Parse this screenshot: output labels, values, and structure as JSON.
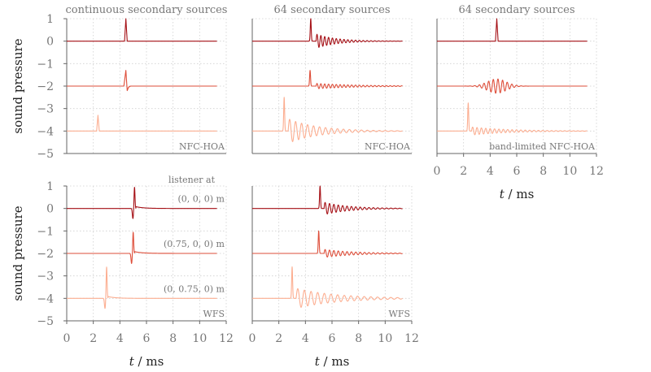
{
  "chart_data": [
    {
      "type": "line",
      "panel": "continuous secondary sources, NFC-HOA",
      "title": "continuous secondary sources",
      "corner_label": "NFC-HOA",
      "ylabel": "sound pressure",
      "xlim": [
        0,
        11.3
      ],
      "ylim": [
        -5,
        1
      ],
      "xticks": [],
      "yticks": [
        1,
        0,
        -1,
        -2,
        -3,
        -4,
        -5
      ],
      "grid": true,
      "series": [
        {
          "offset": 0,
          "color": "#a50f15",
          "x": [
            0,
            4.35,
            4.45,
            4.55,
            11.3
          ],
          "y": [
            0,
            0,
            1.0,
            0,
            0
          ]
        },
        {
          "offset": -2,
          "color": "#de4e3a",
          "x": [
            0,
            4.3,
            4.45,
            4.55,
            4.65,
            4.8,
            11.3
          ],
          "y": [
            -2,
            -2,
            -1.3,
            -2.2,
            -2.05,
            -2,
            -2
          ]
        },
        {
          "offset": -4,
          "color": "#fcae91",
          "x": [
            0,
            2.25,
            2.35,
            2.45,
            11.3
          ],
          "y": [
            -4,
            -4,
            -3.3,
            -4,
            -4
          ]
        }
      ]
    },
    {
      "type": "line",
      "panel": "64 secondary sources, NFC-HOA (full band)",
      "title": "64 secondary sources",
      "corner_label": "NFC-HOA",
      "xlim": [
        0,
        11.3
      ],
      "ylim": [
        -5,
        1
      ],
      "grid": true,
      "series": [
        {
          "offset": 0,
          "color": "#a50f15",
          "note": "impulse at 4.4 ms followed by decaying oscillation",
          "peak_x": 4.4,
          "peak_y": 1.0,
          "ring_start": 4.8,
          "ring_amplitude": 0.32,
          "ring_period": 0.29,
          "ring_decay": 1.5
        },
        {
          "offset": -2,
          "color": "#de4e3a",
          "peak_x": 4.35,
          "peak_y": -1.3,
          "ring_start": 4.8,
          "ring_amplitude": 0.12,
          "ring_period": 0.29,
          "ring_decay": 3.0
        },
        {
          "offset": -4,
          "color": "#fcae91",
          "peak_x": 2.4,
          "peak_y": -2.5,
          "ring_start": 2.7,
          "ring_amplitude": 0.55,
          "ring_period": 0.45,
          "ring_decay": 2.2
        }
      ]
    },
    {
      "type": "line",
      "panel": "64 secondary sources, band-limited NFC-HOA",
      "title": "64 secondary sources",
      "corner_label": "band-limited NFC-HOA",
      "xlabel": "t / ms",
      "xlim": [
        0,
        11.3
      ],
      "ylim": [
        -5,
        1
      ],
      "xticks": [
        0,
        2,
        4,
        6,
        8,
        10,
        12
      ],
      "grid": true,
      "series": [
        {
          "offset": 0,
          "color": "#a50f15",
          "x": [
            0,
            4.4,
            4.5,
            4.6,
            11.3
          ],
          "y": [
            0,
            0,
            1.0,
            0,
            0
          ]
        },
        {
          "offset": -2,
          "color": "#de4e3a",
          "note": "wave packet around 4.5 ms",
          "center": 4.5,
          "amplitude": 0.32,
          "period": 0.35,
          "width": 1.0
        },
        {
          "offset": -4,
          "color": "#fcae91",
          "peak_x": 2.35,
          "peak_y": -2.75,
          "ring_start": 2.6,
          "ring_amplitude": 0.18,
          "ring_period": 0.33,
          "ring_decay": 2.8
        }
      ]
    },
    {
      "type": "line",
      "panel": "continuous secondary sources, WFS",
      "corner_label": "WFS",
      "ylabel": "sound pressure",
      "xlabel": "t / ms",
      "xlim": [
        0,
        11.3
      ],
      "ylim": [
        -5,
        1
      ],
      "xticks": [
        0,
        2,
        4,
        6,
        8,
        10,
        12
      ],
      "yticks": [
        1,
        0,
        -1,
        -2,
        -3,
        -4,
        -5
      ],
      "grid": true,
      "annotation_header": "listener at",
      "series": [
        {
          "offset": 0,
          "color": "#a50f15",
          "label": "(0, 0, 0) m",
          "peak_x": 5.1,
          "peak_y": 0.95
        },
        {
          "offset": -2,
          "color": "#de4e3a",
          "label": "(0.75, 0, 0) m",
          "peak_x": 5.0,
          "peak_y": -1.05
        },
        {
          "offset": -4,
          "color": "#fcae91",
          "label": "(0, 0.75, 0) m",
          "peak_x": 3.0,
          "peak_y": -2.6
        }
      ]
    },
    {
      "type": "line",
      "panel": "64 secondary sources, WFS",
      "corner_label": "WFS",
      "xlabel": "t / ms",
      "xlim": [
        0,
        11.3
      ],
      "ylim": [
        -5,
        1
      ],
      "xticks": [
        0,
        2,
        4,
        6,
        8,
        10,
        12
      ],
      "grid": true,
      "series": [
        {
          "offset": 0,
          "color": "#a50f15",
          "peak_x": 5.1,
          "peak_y": 1.0,
          "ring_start": 5.4,
          "ring_amplitude": 0.28,
          "ring_period": 0.33,
          "ring_decay": 1.8
        },
        {
          "offset": -2,
          "color": "#de4e3a",
          "peak_x": 5.0,
          "peak_y": -1.0,
          "ring_start": 5.4,
          "ring_amplitude": 0.18,
          "ring_period": 0.33,
          "ring_decay": 2.2
        },
        {
          "offset": -4,
          "color": "#fcae91",
          "peak_x": 3.0,
          "peak_y": -2.6,
          "ring_start": 3.3,
          "ring_amplitude": 0.45,
          "ring_period": 0.5,
          "ring_decay": 3.0
        }
      ]
    }
  ]
}
